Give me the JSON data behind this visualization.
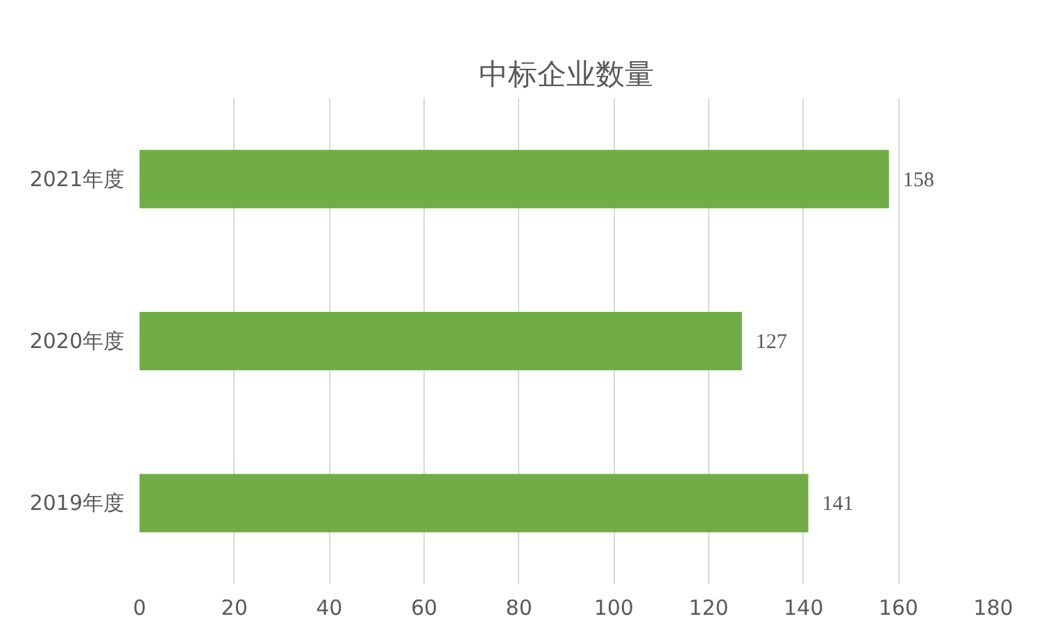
{
  "chart_data": {
    "type": "bar",
    "orientation": "horizontal",
    "title": "中标企业数量",
    "categories": [
      "2021年度",
      "2020年度",
      "2019年度"
    ],
    "values": [
      158,
      127,
      141
    ],
    "color": "#70ad47",
    "data_labels": true,
    "grid": "x",
    "xlim": [
      0,
      180
    ],
    "xticks": [
      0,
      20,
      40,
      60,
      80,
      100,
      120,
      140,
      160,
      180
    ]
  }
}
